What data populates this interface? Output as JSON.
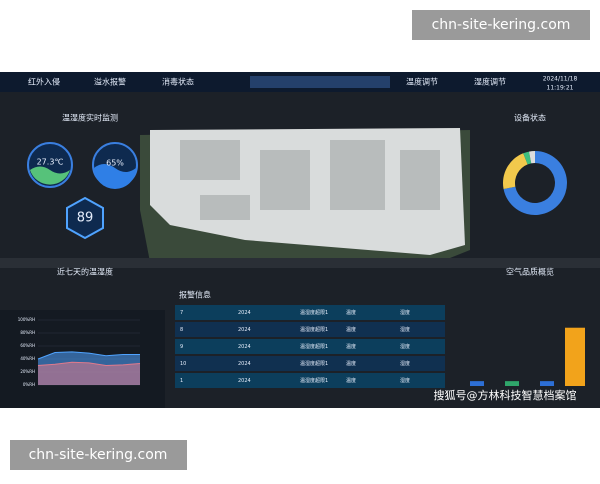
{
  "watermark_top": "chn-site-kering.com",
  "watermark_bottom": "chn-site-kering.com",
  "nav": {
    "tabs": [
      "红外入侵",
      "溢水报警",
      "消毒状态",
      "温度调节",
      "湿度调节"
    ],
    "date": "2024/11/18",
    "time": "11:19:21"
  },
  "realtime": {
    "title": "温湿度实时监测",
    "temperature": "27.3℃",
    "humidity": "65%",
    "score": "89"
  },
  "device_status": {
    "title": "设备状态",
    "values": [
      72,
      22,
      3,
      3
    ],
    "colors": [
      "#3a7fe0",
      "#f2c94c",
      "#3fbf7f",
      "#dddddd"
    ]
  },
  "week_chart": {
    "type": "line",
    "title": "近七天的温湿度",
    "ylim": [
      0,
      100
    ],
    "yticks": [
      {
        "value": 0,
        "label": "0%RH"
      },
      {
        "value": 20,
        "label": "20%RH"
      },
      {
        "value": 40,
        "label": "40%RH"
      },
      {
        "value": 60,
        "label": "60%RH"
      },
      {
        "value": 80,
        "label": "80%RH"
      },
      {
        "value": 100,
        "label": "100%RH"
      }
    ],
    "series": [
      {
        "color": "#4fa3ff",
        "values": [
          40,
          50,
          51,
          49,
          45,
          47,
          47
        ]
      },
      {
        "color": "#e07a8c",
        "values": [
          30,
          32,
          35,
          34,
          30,
          31,
          33
        ]
      }
    ]
  },
  "alarms": {
    "title": "报警信息",
    "rows": [
      [
        "7",
        "2024",
        "温湿度超限1",
        "温度",
        "湿度"
      ],
      [
        "8",
        "2024",
        "温湿度超限1",
        "温度",
        "湿度"
      ],
      [
        "9",
        "2024",
        "温湿度超限1",
        "温度",
        "湿度"
      ],
      [
        "10",
        "2024",
        "温湿度超限1",
        "温度",
        "湿度"
      ],
      [
        "1",
        "2024",
        "温湿度超限1",
        "温度",
        "湿度"
      ]
    ]
  },
  "air_quality": {
    "title": "空气品质概览",
    "ylim": [
      0,
      70
    ],
    "values": [
      5,
      5,
      5,
      60
    ],
    "colors": [
      "#2d6fd6",
      "#2fa56a",
      "#2d6fd6",
      "#f2a31b"
    ]
  },
  "credit": "搜狐号@方林科技智慧档案馆"
}
